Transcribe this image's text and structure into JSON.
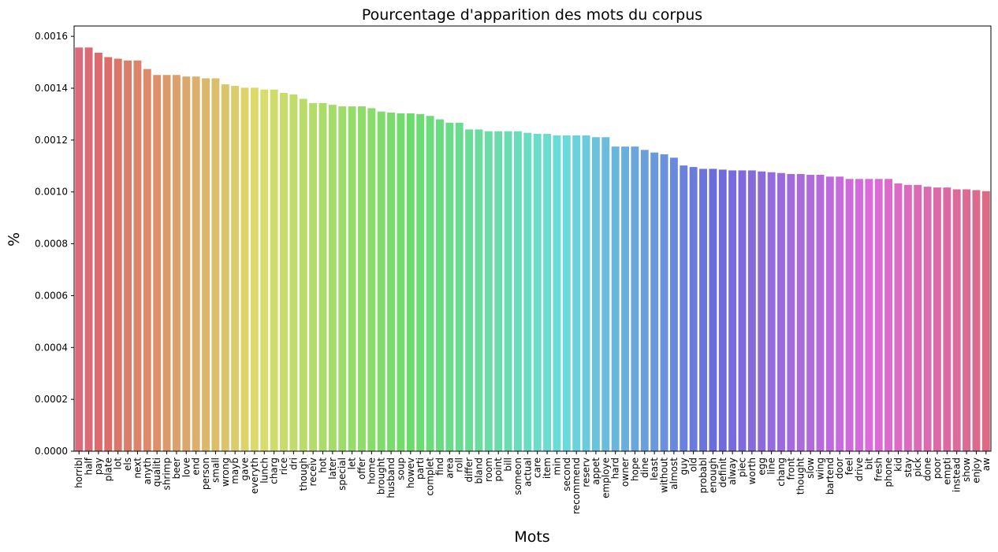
{
  "chart_data": {
    "type": "bar",
    "title": "Pourcentage d'apparition des mots du corpus",
    "xlabel": "Mots",
    "ylabel": "%",
    "ylim": [
      0,
      0.00164
    ],
    "yticks": [
      "0.0000",
      "0.0002",
      "0.0004",
      "0.0006",
      "0.0008",
      "0.0010",
      "0.0012",
      "0.0014",
      "0.0016"
    ],
    "ytick_values": [
      0,
      0.0002,
      0.0004,
      0.0006,
      0.0008,
      0.001,
      0.0012,
      0.0014,
      0.0016
    ],
    "grid": false,
    "categories": [
      "horribl",
      "half",
      "pay",
      "plate",
      "lot",
      "els",
      "next",
      "anyth",
      "qualiti",
      "shrimp",
      "beer",
      "love",
      "end",
      "person",
      "small",
      "wrong",
      "mayb",
      "gave",
      "everyth",
      "lunch",
      "charg",
      "rice",
      "dri",
      "though",
      "receiv",
      "hot",
      "later",
      "special",
      "let",
      "offer",
      "home",
      "brought",
      "husband",
      "soup",
      "howev",
      "parti",
      "complet",
      "find",
      "area",
      "roll",
      "differ",
      "bland",
      "room",
      "point",
      "bill",
      "someon",
      "actual",
      "care",
      "item",
      "min",
      "second",
      "recommend",
      "reserv",
      "appet",
      "employe",
      "hard",
      "owner",
      "hope",
      "dine",
      "least",
      "without",
      "almost",
      "guy",
      "old",
      "probabl",
      "enough",
      "definit",
      "alway",
      "piec",
      "worth",
      "egg",
      "line",
      "chang",
      "front",
      "thought",
      "slow",
      "wing",
      "bartend",
      "door",
      "feel",
      "drive",
      "bit",
      "fresh",
      "phone",
      "kid",
      "stay",
      "pick",
      "done",
      "poor",
      "empti",
      "instead",
      "show",
      "enjoy",
      "aw"
    ],
    "values": [
      0.001557,
      0.001557,
      0.001537,
      0.00152,
      0.001514,
      0.001507,
      0.001507,
      0.001474,
      0.001451,
      0.001451,
      0.001451,
      0.001445,
      0.001445,
      0.001438,
      0.001438,
      0.001415,
      0.001409,
      0.001402,
      0.001402,
      0.001395,
      0.001395,
      0.001382,
      0.001376,
      0.001359,
      0.001343,
      0.001343,
      0.001336,
      0.00133,
      0.00133,
      0.00133,
      0.001323,
      0.00131,
      0.001306,
      0.001303,
      0.001303,
      0.0013,
      0.001293,
      0.00128,
      0.001267,
      0.001267,
      0.001241,
      0.001241,
      0.001234,
      0.001234,
      0.001234,
      0.001234,
      0.001228,
      0.001224,
      0.001224,
      0.001218,
      0.001218,
      0.001218,
      0.001218,
      0.001211,
      0.001211,
      0.001175,
      0.001175,
      0.001175,
      0.001162,
      0.001152,
      0.001145,
      0.001132,
      0.001102,
      0.001096,
      0.001089,
      0.001089,
      0.001086,
      0.001083,
      0.001083,
      0.001083,
      0.001079,
      0.001076,
      0.001073,
      0.001069,
      0.001069,
      0.001066,
      0.001066,
      0.001059,
      0.001059,
      0.00105,
      0.00105,
      0.00105,
      0.00105,
      0.00105,
      0.001033,
      0.001027,
      0.001027,
      0.00102,
      0.001017,
      0.001017,
      0.00101,
      0.00101,
      0.001007,
      0.001003
    ]
  }
}
